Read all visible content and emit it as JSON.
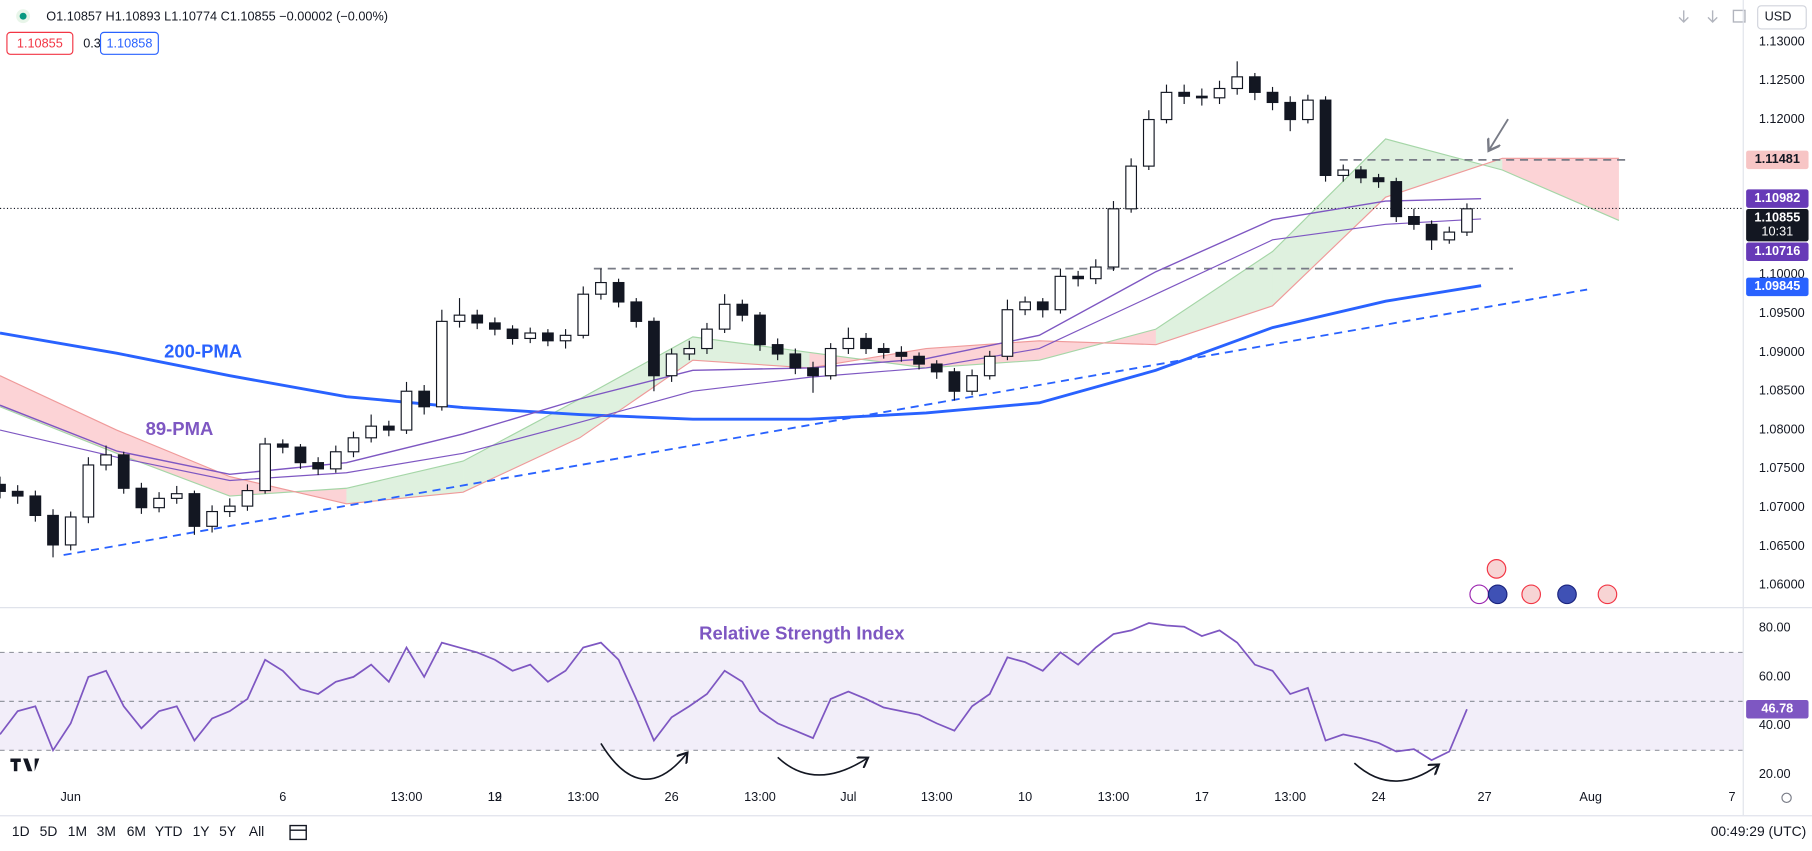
{
  "header": {
    "ohlc": "O1.10857 H1.10893 L1.10774 C1.10855 −0.00002 (−0.00%)",
    "sell": "1.10855",
    "spread": "0.3",
    "buy": "1.10858",
    "currency": "USD"
  },
  "chart_data": [
    {
      "type": "candlestick",
      "xlim": [
        -2,
        47.3
      ],
      "ylim": [
        1.0572,
        1.1354
      ],
      "yticks": [
        {
          "value": 1.13,
          "label": "1.13000"
        },
        {
          "value": 1.125,
          "label": "1.12500"
        },
        {
          "value": 1.12,
          "label": "1.12000"
        },
        {
          "value": 1.115,
          "label": "1.11500"
        },
        {
          "value": 1.11,
          "label": "1.11000"
        },
        {
          "value": 1.105,
          "label": "1.10500"
        },
        {
          "value": 1.1,
          "label": "1.10000"
        },
        {
          "value": 1.095,
          "label": "1.09500"
        },
        {
          "value": 1.09,
          "label": "1.09000"
        },
        {
          "value": 1.085,
          "label": "1.08500"
        },
        {
          "value": 1.08,
          "label": "1.08000"
        },
        {
          "value": 1.075,
          "label": "1.07500"
        },
        {
          "value": 1.07,
          "label": "1.07000"
        },
        {
          "value": 1.065,
          "label": "1.06500"
        },
        {
          "value": 1.06,
          "label": "1.06000"
        }
      ],
      "xticks": [
        {
          "value": 0,
          "label": "Jun"
        },
        6,
        12,
        {
          "value": 9.5,
          "label": "13:00"
        },
        {
          "value": 12,
          "label": "19"
        },
        {
          "value": 14.5,
          "label": "13:00"
        },
        {
          "value": 17,
          "label": "26"
        },
        {
          "value": 19.5,
          "label": "13:00"
        },
        {
          "value": 22,
          "label": "Jul"
        },
        {
          "value": 24.5,
          "label": "13:00"
        },
        {
          "value": 27,
          "label": "10"
        },
        {
          "value": 29.5,
          "label": "13:00"
        },
        {
          "value": 32,
          "label": "17"
        },
        {
          "value": 34.5,
          "label": "13:00"
        },
        {
          "value": 37,
          "label": "24"
        },
        {
          "value": 40,
          "label": "27"
        },
        {
          "value": 43,
          "label": "Aug"
        },
        {
          "value": 47,
          "label": "7"
        }
      ],
      "grid": false,
      "up_color": "#ffffff",
      "down_color": "#131722",
      "x": [
        -2,
        -1.5,
        -1,
        -0.5,
        0,
        0.5,
        1,
        1.5,
        2,
        2.5,
        3,
        3.5,
        4,
        4.5,
        5,
        5.5,
        6,
        6.5,
        7,
        7.5,
        8,
        8.5,
        9,
        9.5,
        10,
        10.5,
        11,
        11.5,
        12,
        12.5,
        13,
        13.5,
        14,
        14.5,
        15,
        15.5,
        16,
        16.5,
        17,
        17.5,
        18,
        18.5,
        19,
        19.5,
        20,
        20.5,
        21,
        21.5,
        22,
        22.5,
        23,
        23.5,
        24,
        24.5,
        25,
        25.5,
        26,
        26.5,
        27,
        27.5,
        28,
        28.5,
        29,
        29.5,
        30,
        30.5,
        31,
        31.5,
        32,
        32.5,
        33,
        33.5,
        34,
        34.5,
        35,
        35.5,
        36,
        36.5,
        37,
        37.5,
        38,
        38.5,
        39,
        39.5
      ],
      "open": [
        1.073,
        1.0721,
        1.0715,
        1.069,
        1.0652,
        1.0688,
        1.0755,
        1.0768,
        1.0725,
        1.07,
        1.0712,
        1.0718,
        1.0676,
        1.0695,
        1.0702,
        1.0722,
        1.0782,
        1.0778,
        1.0758,
        1.075,
        1.0772,
        1.079,
        1.0805,
        1.08,
        1.085,
        1.083,
        1.094,
        1.0948,
        1.0938,
        1.093,
        1.0918,
        1.0925,
        1.0915,
        1.0922,
        1.0975,
        1.099,
        1.0965,
        1.094,
        1.087,
        1.0898,
        1.0905,
        1.093,
        1.0962,
        1.0948,
        1.091,
        1.0898,
        1.088,
        1.087,
        1.0905,
        1.0918,
        1.0905,
        1.09,
        1.0895,
        1.0885,
        1.0875,
        1.085,
        1.087,
        1.0895,
        1.0955,
        1.0965,
        1.0955,
        1.0998,
        1.0995,
        1.101,
        1.1085,
        1.114,
        1.12,
        1.1235,
        1.123,
        1.1228,
        1.124,
        1.1255,
        1.1235,
        1.1222,
        1.12,
        1.1225,
        1.1128,
        1.1135,
        1.1125,
        1.112,
        1.1075,
        1.1065,
        1.1045,
        1.1055
      ],
      "high": [
        1.074,
        1.0729,
        1.0722,
        1.0698,
        1.0695,
        1.0765,
        1.078,
        1.0772,
        1.0732,
        1.072,
        1.0728,
        1.0722,
        1.0703,
        1.0712,
        1.073,
        1.079,
        1.0788,
        1.0782,
        1.0765,
        1.078,
        1.0798,
        1.082,
        1.0812,
        1.0862,
        1.0858,
        1.0955,
        1.097,
        1.0955,
        1.0945,
        1.0935,
        1.0932,
        1.093,
        1.093,
        1.0985,
        1.1008,
        1.0995,
        1.097,
        1.0945,
        1.0905,
        1.0915,
        1.0938,
        1.0975,
        1.0968,
        1.0952,
        1.0918,
        1.0905,
        1.0888,
        1.0912,
        1.0932,
        1.0925,
        1.0912,
        1.0908,
        1.09,
        1.089,
        1.088,
        1.0878,
        1.0902,
        1.0968,
        1.0972,
        1.097,
        1.1008,
        1.1005,
        1.102,
        1.1095,
        1.115,
        1.1212,
        1.1245,
        1.1245,
        1.124,
        1.125,
        1.1275,
        1.126,
        1.1242,
        1.123,
        1.1232,
        1.123,
        1.1142,
        1.114,
        1.113,
        1.1125,
        1.1085,
        1.107,
        1.1062,
        1.1092
      ],
      "low": [
        1.0712,
        1.0705,
        1.0682,
        1.0636,
        1.0645,
        1.068,
        1.0748,
        1.0718,
        1.0692,
        1.0694,
        1.0705,
        1.0665,
        1.0668,
        1.0688,
        1.0696,
        1.0718,
        1.077,
        1.075,
        1.0742,
        1.0745,
        1.0765,
        1.0784,
        1.0792,
        1.0795,
        1.082,
        1.0825,
        1.0932,
        1.093,
        1.0922,
        1.091,
        1.0912,
        1.0908,
        1.0905,
        1.0918,
        1.0968,
        1.0958,
        1.0932,
        1.085,
        1.0862,
        1.089,
        1.0898,
        1.0925,
        1.094,
        1.0902,
        1.089,
        1.0872,
        1.0848,
        1.0865,
        1.0898,
        1.0898,
        1.0892,
        1.0888,
        1.0878,
        1.0866,
        1.0838,
        1.0845,
        1.0865,
        1.089,
        1.0948,
        1.0945,
        1.095,
        1.0985,
        1.0988,
        1.1005,
        1.108,
        1.1135,
        1.1195,
        1.122,
        1.1218,
        1.122,
        1.1232,
        1.1225,
        1.1212,
        1.1185,
        1.1195,
        1.112,
        1.112,
        1.1118,
        1.1112,
        1.1068,
        1.1058,
        1.1032,
        1.104,
        1.105
      ],
      "close": [
        1.0721,
        1.0715,
        1.069,
        1.0652,
        1.0688,
        1.0755,
        1.0768,
        1.0725,
        1.07,
        1.0712,
        1.0718,
        1.0676,
        1.0695,
        1.0702,
        1.0722,
        1.0782,
        1.0778,
        1.0758,
        1.075,
        1.0772,
        1.079,
        1.0805,
        1.08,
        1.085,
        1.083,
        1.094,
        1.0948,
        1.0938,
        1.093,
        1.0918,
        1.0925,
        1.0915,
        1.0922,
        1.0975,
        1.099,
        1.0965,
        1.094,
        1.087,
        1.0898,
        1.0905,
        1.093,
        1.0962,
        1.0948,
        1.091,
        1.0898,
        1.088,
        1.087,
        1.0905,
        1.0918,
        1.0905,
        1.09,
        1.0895,
        1.0885,
        1.0875,
        1.085,
        1.087,
        1.0895,
        1.0955,
        1.0965,
        1.0955,
        1.0998,
        1.0995,
        1.101,
        1.1085,
        1.114,
        1.12,
        1.1235,
        1.123,
        1.1228,
        1.124,
        1.1255,
        1.1235,
        1.1222,
        1.12,
        1.1225,
        1.1128,
        1.1135,
        1.1125,
        1.112,
        1.1075,
        1.1065,
        1.1045,
        1.1055,
        1.1085
      ],
      "lines": [
        {
          "name": "200-PMA",
          "color": "#2962ff",
          "width": 2.5,
          "x": [
            -2,
            1.3,
            4.5,
            7.8,
            11.1,
            14.4,
            17.6,
            20.9,
            24.2,
            27.4,
            30.7,
            34,
            37.2,
            39.9
          ],
          "values": [
            1.0925,
            1.0899,
            1.087,
            1.0843,
            1.0829,
            1.082,
            1.0814,
            1.0814,
            1.0822,
            1.0835,
            1.0877,
            1.0932,
            1.0966,
            1.0986
          ]
        },
        {
          "name": "89-PMA",
          "color": "#7e57c2",
          "width": 1.2,
          "x": [
            -2,
            1.3,
            4.5,
            7.8,
            11.1,
            14.4,
            17.6,
            20.9,
            24.2,
            27.4,
            30.7,
            34,
            37.2,
            39.9
          ],
          "values": [
            1.0832,
            1.0773,
            1.0743,
            1.0758,
            1.0795,
            1.084,
            1.0877,
            1.088,
            1.0892,
            1.0922,
            1.1004,
            1.1071,
            1.1095,
            1.1098
          ]
        },
        {
          "color": "#7e57c2",
          "width": 1,
          "x": [
            -2,
            1.3,
            4.5,
            7.8,
            11.1,
            14.4,
            17.6,
            20.9,
            24.2,
            27.4,
            30.7,
            34,
            37.2,
            39.9
          ],
          "values": [
            1.08,
            1.0765,
            1.0735,
            1.0745,
            1.077,
            1.081,
            1.085,
            1.0868,
            1.088,
            1.0905,
            1.0975,
            1.1045,
            1.1065,
            1.1072
          ]
        }
      ],
      "cloud": {
        "x": [
          -2,
          1.3,
          4.5,
          7.8,
          11.1,
          14.4,
          17.6,
          20.9,
          24.2,
          27.4,
          30.7,
          34,
          37.2,
          40.5,
          43.8
        ],
        "span_a": [
          1.083,
          1.077,
          1.0715,
          1.0725,
          1.076,
          1.084,
          1.092,
          1.09,
          1.088,
          1.089,
          1.093,
          1.103,
          1.1175,
          1.1135,
          1.107
        ],
        "span_b": [
          1.087,
          1.08,
          1.074,
          1.0705,
          1.072,
          1.079,
          1.089,
          1.088,
          1.0905,
          1.0915,
          1.091,
          1.096,
          1.11,
          1.115,
          1.115
        ],
        "up_color": "rgba(76,175,80,0.18)",
        "down_color": "rgba(242,54,69,0.22)",
        "span_a_color": "#a5d6a7",
        "span_b_color": "#ef9a9a"
      },
      "levels": [
        {
          "value": 1.11481,
          "x": [
            35.9,
            44
          ],
          "color": "#787b86"
        },
        {
          "value": 1.1008,
          "x": [
            14.8,
            40.8
          ],
          "color": "#787b86"
        }
      ],
      "trendline": {
        "x": [
          -0.2,
          42.9
        ],
        "values": [
          1.0639,
          1.0981
        ],
        "color": "#2962ff"
      },
      "current_price": 1.10855,
      "countdown": "10:31",
      "badges": [
        {
          "value": 1.11481,
          "bg": "#f7c5c5",
          "fg": "#131722"
        },
        {
          "value": 1.10982,
          "bg": "#673ab7",
          "fg": "#ffffff"
        },
        {
          "value": 1.10716,
          "bg": "#673ab7",
          "fg": "#ffffff"
        },
        {
          "value": 1.09845,
          "bg": "#2962ff",
          "fg": "#ffffff"
        }
      ]
    },
    {
      "type": "line",
      "title": "Relative Strength Index",
      "color": "#7e57c2",
      "ylim": [
        13.9,
        87.6
      ],
      "yticks": [
        {
          "value": 80,
          "label": "80.00"
        },
        {
          "value": 60,
          "label": "60.00"
        },
        {
          "value": 40,
          "label": "40.00"
        },
        {
          "value": 20,
          "label": "20.00"
        }
      ],
      "band": [
        30,
        70
      ],
      "midline": 50,
      "band_color": "rgba(126,87,194,0.1)",
      "values": [
        36.5,
        46,
        48,
        30,
        41,
        60,
        62.5,
        48,
        39,
        46,
        48,
        34,
        43,
        46,
        51,
        67,
        62.5,
        55,
        53,
        58,
        60,
        65,
        58,
        72,
        60,
        74,
        72,
        70,
        67,
        62.5,
        65,
        58,
        62.5,
        72,
        74,
        67,
        51,
        34,
        43.5,
        48,
        53,
        62.5,
        58,
        46,
        41,
        38,
        35,
        51,
        54,
        51,
        47.5,
        46,
        44.5,
        41,
        38,
        48,
        53,
        68,
        66,
        62.5,
        70,
        65,
        72,
        77.5,
        79,
        82,
        81,
        80.5,
        76.7,
        79,
        74,
        65,
        62.5,
        53,
        55.5,
        34,
        36.5,
        35,
        33,
        29.5,
        30.5,
        26,
        29.5,
        46.78
      ]
    }
  ],
  "toolbar": {
    "ranges": [
      "1D",
      "5D",
      "1M",
      "3M",
      "6M",
      "YTD",
      "1Y",
      "5Y",
      "All"
    ],
    "clock": "00:49:29 (UTC)"
  }
}
